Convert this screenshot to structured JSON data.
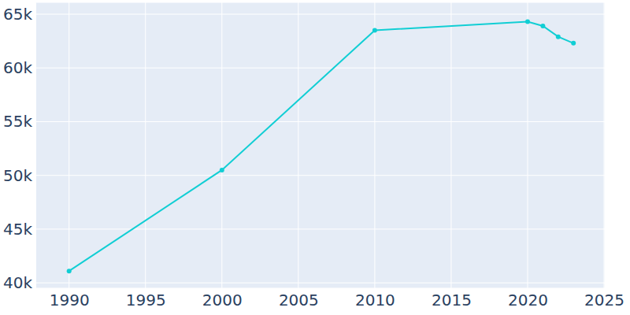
{
  "chart_data": {
    "type": "line",
    "x": [
      1990,
      2000,
      2010,
      2020,
      2021,
      2022,
      2023
    ],
    "values": [
      41100,
      50500,
      63500,
      64300,
      63900,
      62900,
      62300
    ],
    "color": "#11ced4",
    "marker": "circle",
    "xlim": [
      1987.8,
      2025.05
    ],
    "xticks": [
      1990,
      1995,
      2000,
      2005,
      2010,
      2015,
      2020,
      2025
    ],
    "ylim": [
      39500,
      66100
    ],
    "yticks": [
      {
        "value": 40000,
        "label": "40k"
      },
      {
        "value": 45000,
        "label": "45k"
      },
      {
        "value": 50000,
        "label": "50k"
      },
      {
        "value": 55000,
        "label": "55k"
      },
      {
        "value": 60000,
        "label": "60k"
      },
      {
        "value": 65000,
        "label": "65k"
      }
    ],
    "grid": true
  }
}
